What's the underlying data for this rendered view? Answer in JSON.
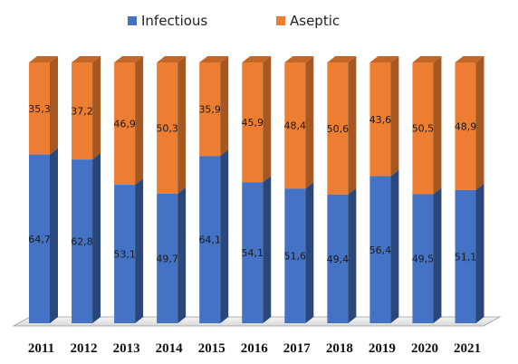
{
  "chart_data": {
    "type": "bar",
    "stacked": true,
    "percent_stacked": true,
    "categories": [
      "2011",
      "2012",
      "2013",
      "2014",
      "2015",
      "2016",
      "2017",
      "2018",
      "2019",
      "2020",
      "2021"
    ],
    "series": [
      {
        "name": "Infectious",
        "color": "#4472c4",
        "values": [
          64.7,
          62.8,
          53.1,
          49.7,
          64.1,
          54.1,
          51.6,
          49.4,
          56.4,
          49.5,
          51.1
        ],
        "labels": [
          "64,7",
          "62,8",
          "53,1",
          "49,7",
          "64,1",
          "54,1",
          "51,6",
          "49,4",
          "56,4",
          "49,5",
          "51,1"
        ]
      },
      {
        "name": "Aseptic",
        "color": "#ed7d31",
        "values": [
          35.3,
          37.2,
          46.9,
          50.3,
          35.9,
          45.9,
          48.4,
          50.6,
          43.6,
          50.5,
          48.9
        ],
        "labels": [
          "35,3",
          "37,2",
          "46,9",
          "50,3",
          "35,9",
          "45,9",
          "48,4",
          "50,6",
          "43,6",
          "50,5",
          "48,9"
        ]
      }
    ],
    "title": "",
    "xlabel": "",
    "ylabel": "",
    "ylim": [
      0,
      100
    ],
    "legend": "top-center",
    "grid": false,
    "style": "3d-column"
  }
}
